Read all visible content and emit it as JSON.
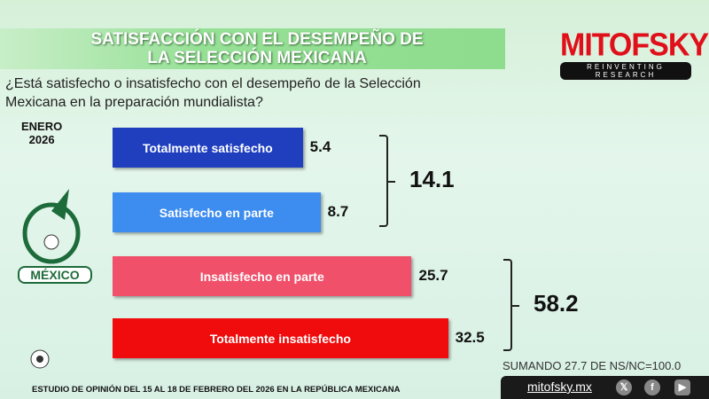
{
  "header": {
    "title_line1": "SATISFACCIÓN CON EL DESEMPEÑO DE",
    "title_line2": "LA SELECCIÓN MEXICANA"
  },
  "logo": {
    "name": "MITOFSKY",
    "tagline": "REINVENTING RESEARCH"
  },
  "question": "¿Está satisfecho o insatisfecho con el desempeño de la Selección Mexicana en la preparación mundialista?",
  "period": {
    "month": "ENERO",
    "year": "2026"
  },
  "emblem": {
    "word": "MÉXICO"
  },
  "chart_data": {
    "type": "bar",
    "orientation": "horizontal",
    "categories": [
      "Totalmente satisfecho",
      "Satisfecho en parte",
      "Insatisfecho en parte",
      "Totalmente insatisfecho"
    ],
    "values": [
      5.4,
      8.7,
      25.7,
      32.5
    ],
    "value_labels": [
      "5.4",
      "8.7",
      "25.7",
      "32.5"
    ],
    "colors": [
      "#1f3fbf",
      "#3d8cf0",
      "#f0506a",
      "#f00c0c"
    ],
    "groups": [
      {
        "label": "14.1",
        "members": [
          0,
          1
        ]
      },
      {
        "label": "58.2",
        "members": [
          2,
          3
        ]
      }
    ]
  },
  "note": "SUMANDO 27.7 DE NS/NC=100.0",
  "footer": "ESTUDIO DE OPINIÓN DEL 15 AL 18  DE FEBRERO DEL 2026 EN LA REPÚBLICA MEXICANA",
  "social": {
    "url": "mitofsky.mx"
  }
}
